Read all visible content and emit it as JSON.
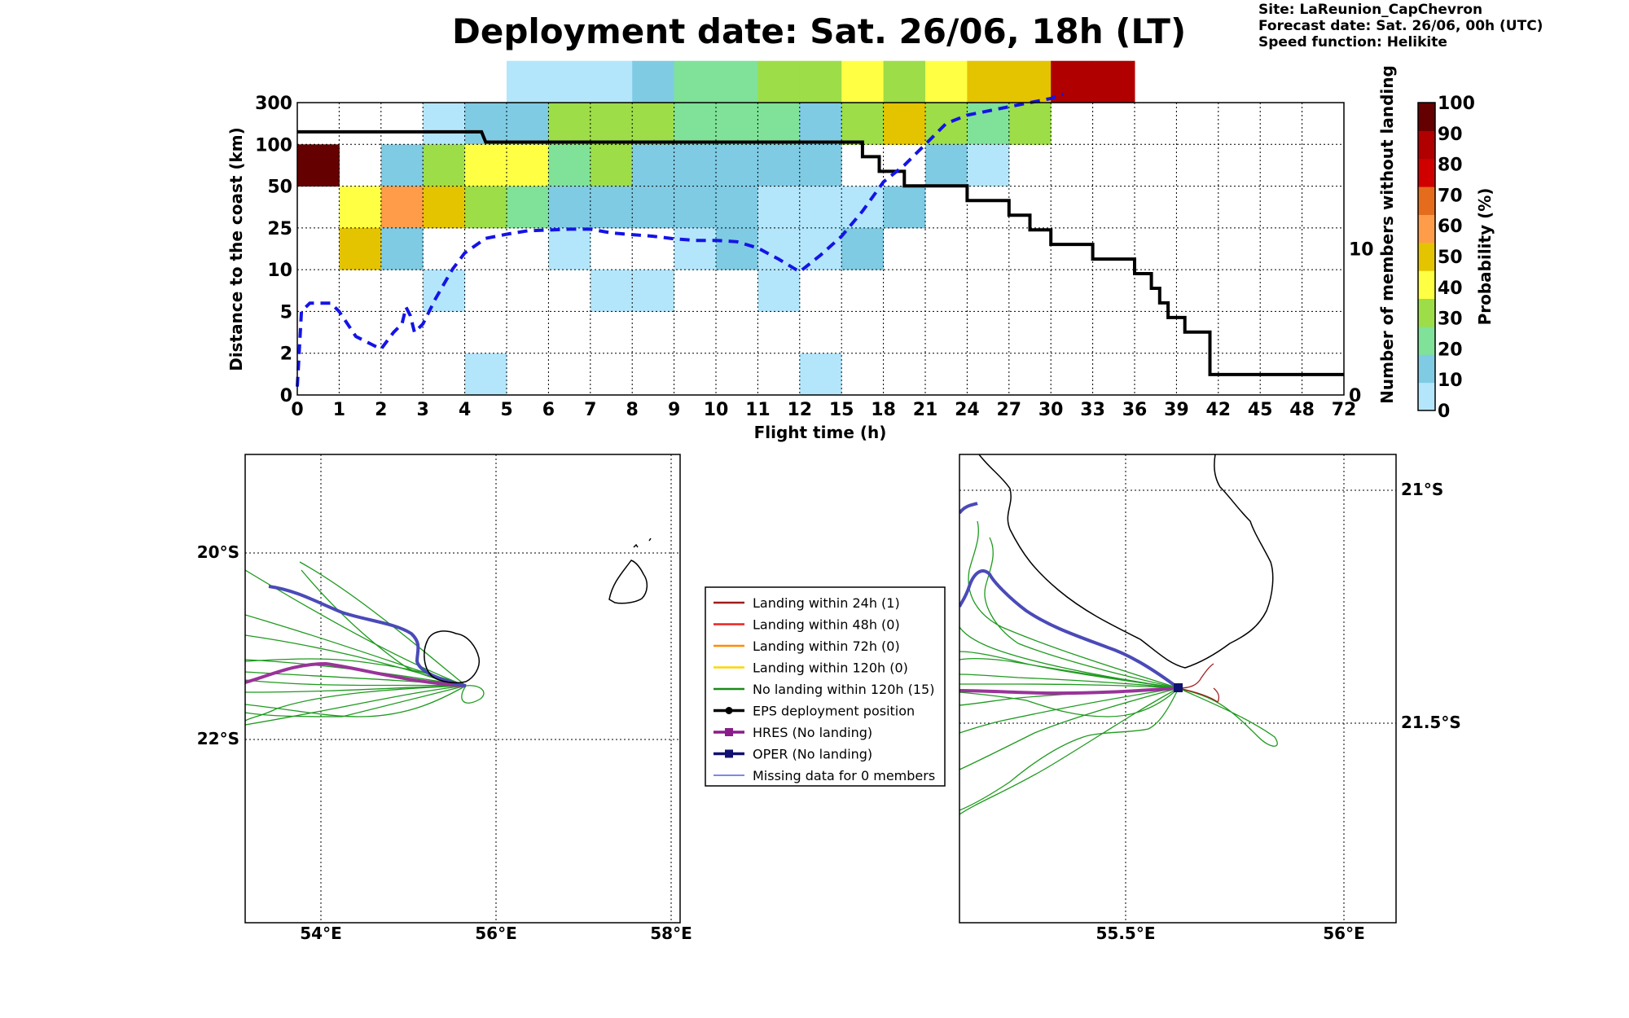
{
  "header": {
    "title": "Deployment date: Sat. 26/06, 18h (LT)",
    "site": "Site: LaReunion_CapChevron",
    "forecast": "Forecast date: Sat. 26/06, 00h (UTC)",
    "speed": "Speed function: Helikite"
  },
  "chart_data": [
    {
      "type": "heatmap",
      "xlabel": "Flight time (h)",
      "ylabel": "Distance to the coast (km)",
      "ylabel_right": "Number of members without landing",
      "x_ticks": [
        "0",
        "1",
        "2",
        "3",
        "4",
        "5",
        "6",
        "7",
        "8",
        "9",
        "10",
        "11",
        "12",
        "15",
        "18",
        "21",
        "24",
        "27",
        "30",
        "33",
        "36",
        "39",
        "42",
        "45",
        "48",
        "72"
      ],
      "y_ticks": [
        "0",
        "2",
        "5",
        "10",
        "25",
        "50",
        "100",
        "300"
      ],
      "right_ticks": [
        "0",
        "10"
      ],
      "right_ylim": [
        0,
        20
      ],
      "colorbar": {
        "label": "Probability (%)",
        "ticks": [
          "0",
          "10",
          "20",
          "30",
          "40",
          "50",
          "60",
          "70",
          "80",
          "90",
          "100"
        ],
        "colors": [
          "#b3e6fb",
          "#7fcbe3",
          "#7fe298",
          "#9ddd48",
          "#ffff44",
          "#e4c300",
          "#fe9c4a",
          "#e56c1c",
          "#d00000",
          "#b00000",
          "#650000"
        ]
      },
      "grid": true,
      "cells": [
        {
          "x": 0,
          "y": 5,
          "p": 100
        },
        {
          "x": 1,
          "y": 4,
          "p": 40
        },
        {
          "x": 1,
          "y": 3,
          "p": 50
        },
        {
          "x": 2,
          "y": 5,
          "p": 10
        },
        {
          "x": 2,
          "y": 4,
          "p": 60
        },
        {
          "x": 2,
          "y": 3,
          "p": 10
        },
        {
          "x": 3,
          "y": 6,
          "p": 0
        },
        {
          "x": 3,
          "y": 5,
          "p": 30
        },
        {
          "x": 3,
          "y": 4,
          "p": 50
        },
        {
          "x": 3,
          "y": 2,
          "p": 0
        },
        {
          "x": 4,
          "y": 6,
          "p": 10
        },
        {
          "x": 4,
          "y": 5,
          "p": 40
        },
        {
          "x": 4,
          "y": 4,
          "p": 30
        },
        {
          "x": 4,
          "y": 0,
          "p": 0
        },
        {
          "x": 5,
          "y": 7,
          "p": 0
        },
        {
          "x": 5,
          "y": 6,
          "p": 10
        },
        {
          "x": 5,
          "y": 5,
          "p": 40
        },
        {
          "x": 5,
          "y": 4,
          "p": 20
        },
        {
          "x": 6,
          "y": 7,
          "p": 0
        },
        {
          "x": 6,
          "y": 6,
          "p": 30
        },
        {
          "x": 6,
          "y": 5,
          "p": 20
        },
        {
          "x": 6,
          "y": 4,
          "p": 10
        },
        {
          "x": 6,
          "y": 3,
          "p": 0
        },
        {
          "x": 7,
          "y": 7,
          "p": 0
        },
        {
          "x": 7,
          "y": 6,
          "p": 30
        },
        {
          "x": 7,
          "y": 5,
          "p": 30
        },
        {
          "x": 7,
          "y": 4,
          "p": 10
        },
        {
          "x": 7,
          "y": 2,
          "p": 0
        },
        {
          "x": 8,
          "y": 7,
          "p": 10
        },
        {
          "x": 8,
          "y": 6,
          "p": 30
        },
        {
          "x": 8,
          "y": 5,
          "p": 10
        },
        {
          "x": 8,
          "y": 4,
          "p": 10
        },
        {
          "x": 8,
          "y": 2,
          "p": 0
        },
        {
          "x": 9,
          "y": 7,
          "p": 20
        },
        {
          "x": 9,
          "y": 6,
          "p": 20
        },
        {
          "x": 9,
          "y": 5,
          "p": 10
        },
        {
          "x": 9,
          "y": 4,
          "p": 10
        },
        {
          "x": 9,
          "y": 3,
          "p": 0
        },
        {
          "x": 10,
          "y": 7,
          "p": 20
        },
        {
          "x": 10,
          "y": 6,
          "p": 20
        },
        {
          "x": 10,
          "y": 5,
          "p": 10
        },
        {
          "x": 10,
          "y": 4,
          "p": 10
        },
        {
          "x": 10,
          "y": 3,
          "p": 10
        },
        {
          "x": 11,
          "y": 7,
          "p": 30
        },
        {
          "x": 11,
          "y": 6,
          "p": 20
        },
        {
          "x": 11,
          "y": 5,
          "p": 10
        },
        {
          "x": 11,
          "y": 4,
          "p": 0
        },
        {
          "x": 11,
          "y": 3,
          "p": 0
        },
        {
          "x": 11,
          "y": 2,
          "p": 0
        },
        {
          "x": 12,
          "y": 7,
          "p": 30
        },
        {
          "x": 12,
          "y": 6,
          "p": 10
        },
        {
          "x": 12,
          "y": 5,
          "p": 10
        },
        {
          "x": 12,
          "y": 4,
          "p": 0
        },
        {
          "x": 12,
          "y": 3,
          "p": 0
        },
        {
          "x": 12,
          "y": 0,
          "p": 0
        },
        {
          "x": 13,
          "y": 7,
          "p": 40
        },
        {
          "x": 13,
          "y": 6,
          "p": 30
        },
        {
          "x": 13,
          "y": 4,
          "p": 0
        },
        {
          "x": 13,
          "y": 3,
          "p": 10
        },
        {
          "x": 14,
          "y": 7,
          "p": 30
        },
        {
          "x": 14,
          "y": 6,
          "p": 50
        },
        {
          "x": 14,
          "y": 4,
          "p": 10
        },
        {
          "x": 15,
          "y": 7,
          "p": 40
        },
        {
          "x": 15,
          "y": 6,
          "p": 30
        },
        {
          "x": 15,
          "y": 5,
          "p": 10
        },
        {
          "x": 16,
          "y": 7,
          "p": 50
        },
        {
          "x": 16,
          "y": 6,
          "p": 20
        },
        {
          "x": 16,
          "y": 5,
          "p": 0
        },
        {
          "x": 17,
          "y": 7,
          "p": 50
        },
        {
          "x": 17,
          "y": 6,
          "p": 30
        },
        {
          "x": 18,
          "y": 7,
          "p": 90
        },
        {
          "x": 19,
          "y": 7,
          "p": 90
        }
      ],
      "series": [
        {
          "name": "",
          "style": "solid-black",
          "axis": "right",
          "points": [
            [
              0,
              18
            ],
            [
              4.4,
              18
            ],
            [
              4.5,
              17.3
            ],
            [
              12,
              17.3
            ],
            [
              13.5,
              17.3
            ],
            [
              13.5,
              16.3
            ],
            [
              13.9,
              16.3
            ],
            [
              13.9,
              15.3
            ],
            [
              14.5,
              15.3
            ],
            [
              14.5,
              14.3
            ],
            [
              16,
              14.3
            ],
            [
              16,
              13.3
            ],
            [
              17,
              13.3
            ],
            [
              17,
              12.3
            ],
            [
              17.5,
              12.3
            ],
            [
              17.5,
              11.3
            ],
            [
              18,
              11.3
            ],
            [
              18,
              10.3
            ],
            [
              19,
              10.3
            ],
            [
              19,
              9.3
            ],
            [
              20,
              9.3
            ],
            [
              20,
              8.3
            ],
            [
              20.4,
              8.3
            ],
            [
              20.4,
              7.3
            ],
            [
              20.6,
              7.3
            ],
            [
              20.6,
              6.3
            ],
            [
              20.8,
              6.3
            ],
            [
              20.8,
              5.3
            ],
            [
              21.2,
              5.3
            ],
            [
              21.2,
              4.3
            ],
            [
              21.8,
              4.3
            ],
            [
              21.8,
              1.4
            ],
            [
              25,
              1.4
            ]
          ]
        },
        {
          "name": "",
          "style": "dashed-blue",
          "axis": "left",
          "points": [
            [
              0,
              0.2
            ],
            [
              0.1,
              2
            ],
            [
              0.3,
              2.2
            ],
            [
              0.6,
              2.2
            ],
            [
              0.8,
              2.2
            ],
            [
              1,
              2
            ],
            [
              1.4,
              1.4
            ],
            [
              1.8,
              1.2
            ],
            [
              2,
              1.1
            ],
            [
              2.3,
              1.5
            ],
            [
              2.5,
              1.7
            ],
            [
              2.6,
              2.1
            ],
            [
              2.7,
              1.9
            ],
            [
              2.8,
              1.5
            ],
            [
              3,
              1.7
            ],
            [
              3.3,
              2.3
            ],
            [
              3.7,
              3.0
            ],
            [
              4,
              3.4
            ],
            [
              4.5,
              3.75
            ],
            [
              5,
              3.85
            ],
            [
              5.5,
              3.93
            ],
            [
              6,
              3.95
            ],
            [
              6.5,
              3.97
            ],
            [
              7,
              3.97
            ],
            [
              7.5,
              3.88
            ],
            [
              8,
              3.84
            ],
            [
              8.5,
              3.8
            ],
            [
              9,
              3.74
            ],
            [
              9.5,
              3.7
            ],
            [
              10,
              3.7
            ],
            [
              10.5,
              3.67
            ],
            [
              11,
              3.52
            ],
            [
              11.5,
              3.25
            ],
            [
              12,
              2.95
            ],
            [
              12.5,
              3.35
            ],
            [
              13,
              3.8
            ],
            [
              13.5,
              4.4
            ],
            [
              14,
              5.1
            ],
            [
              14.5,
              5.5
            ],
            [
              15,
              6.0
            ],
            [
              15.5,
              6.5
            ],
            [
              16,
              6.7
            ],
            [
              17,
              6.9
            ],
            [
              18,
              7.1
            ],
            [
              18.3,
              7.2
            ]
          ]
        }
      ]
    },
    {
      "type": "map",
      "x_ticks": [
        "54°E",
        "56°E",
        "58°E"
      ],
      "y_ticks": [
        "20°S",
        "22°S"
      ],
      "xlim": [
        53.15,
        58.1
      ],
      "ylim": [
        -24.0,
        -19.0
      ],
      "grid": true
    },
    {
      "type": "map",
      "x_ticks": [
        "55.5°E",
        "56°E"
      ],
      "y_ticks": [
        "21°S",
        "21.5°S"
      ],
      "xlim": [
        55.1,
        56.1
      ],
      "ylim": [
        -21.9,
        -20.9
      ],
      "grid": true
    }
  ],
  "legend": {
    "items": [
      {
        "label": "Landing within 24h (1)",
        "color": "#a01c1c",
        "type": "line"
      },
      {
        "label": "Landing within 48h (0)",
        "color": "#ee2020",
        "type": "line"
      },
      {
        "label": "Landing within 72h (0)",
        "color": "#ff8c00",
        "type": "line"
      },
      {
        "label": "Landing within 120h (0)",
        "color": "#ffd700",
        "type": "line"
      },
      {
        "label": "No landing within 120h (15)",
        "color": "#1a8a1a",
        "type": "line"
      },
      {
        "label": "EPS deployment position",
        "color": "#000000",
        "type": "dot"
      },
      {
        "label": "HRES (No landing)",
        "color": "#8a1c8a",
        "type": "square"
      },
      {
        "label": "OPER (No landing)",
        "color": "#101070",
        "type": "square"
      },
      {
        "label": "Missing data for 0 members",
        "color": "#5060e0",
        "type": "line"
      }
    ]
  }
}
